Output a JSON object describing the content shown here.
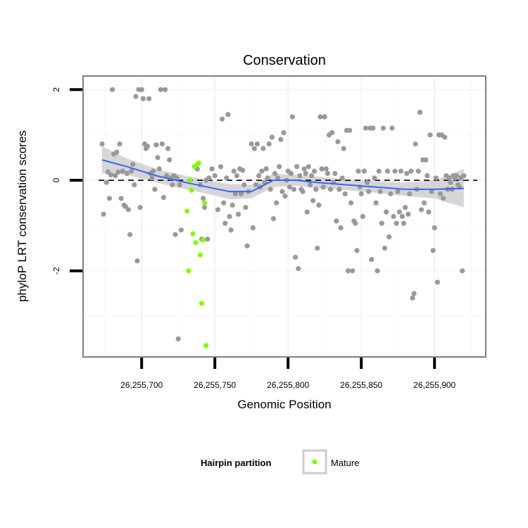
{
  "chart_data": {
    "type": "scatter",
    "title": "Conservation",
    "xlabel": "Genomic Position",
    "ylabel": "phyloP LRT conservation scores",
    "xlim": [
      26255660,
      26255935
    ],
    "ylim": [
      -3.9,
      2.3
    ],
    "x_ticks": [
      26255700,
      26255750,
      26255800,
      26255850,
      26255900
    ],
    "x_tick_labels": [
      "26,255,700",
      "26,255,750",
      "26,255,800",
      "26,255,850",
      "26,255,900"
    ],
    "y_ticks": [
      2,
      0,
      -2
    ],
    "y_tick_labels": [
      "2",
      "0",
      "-2"
    ],
    "reference_line": {
      "y": 0,
      "style": "dashed"
    },
    "grid": true,
    "legend": {
      "title": "Hairpin partition",
      "position": "bottom",
      "entries": [
        {
          "label": "Mature",
          "color": "#7fff00"
        }
      ]
    },
    "series": [
      {
        "color": "#999999",
        "points": [
          [
            26255673,
            0.8
          ],
          [
            26255674,
            -0.75
          ],
          [
            26255676,
            -0.05
          ],
          [
            26255677,
            0.18
          ],
          [
            26255678,
            -0.4
          ],
          [
            26255679,
            0.12
          ],
          [
            26255680,
            2.0
          ],
          [
            26255681,
            0.58
          ],
          [
            26255682,
            0.1
          ],
          [
            26255683,
            0.62
          ],
          [
            26255684,
            0.18
          ],
          [
            26255685,
            0.8
          ],
          [
            26255686,
            -0.4
          ],
          [
            26255687,
            0.2
          ],
          [
            26255688,
            -0.55
          ],
          [
            26255689,
            -0.58
          ],
          [
            26255690,
            0.15
          ],
          [
            26255691,
            -0.65
          ],
          [
            26255692,
            -1.2
          ],
          [
            26255693,
            0.2
          ],
          [
            26255694,
            0.35
          ],
          [
            26255695,
            -0.1
          ],
          [
            26255696,
            1.85
          ],
          [
            26255697,
            -1.78
          ],
          [
            26255698,
            2.0
          ],
          [
            26255699,
            -0.6
          ],
          [
            26255700,
            2.0
          ],
          [
            26255701,
            1.8
          ],
          [
            26255702,
            0.8
          ],
          [
            26255703,
            0.7
          ],
          [
            26255704,
            0.75
          ],
          [
            26255705,
            1.8
          ],
          [
            26255706,
            0.15
          ],
          [
            26255707,
            0.05
          ],
          [
            26255708,
            0.2
          ],
          [
            26255709,
            -0.2
          ],
          [
            26255710,
            0.78
          ],
          [
            26255711,
            0.5
          ],
          [
            26255712,
            0.25
          ],
          [
            26255713,
            2.0
          ],
          [
            26255714,
            0.8
          ],
          [
            26255715,
            -0.38
          ],
          [
            26255716,
            2.0
          ],
          [
            26255717,
            0.1
          ],
          [
            26255718,
            0.7
          ],
          [
            26255719,
            0.45
          ],
          [
            26255720,
            0.05
          ],
          [
            26255721,
            -0.1
          ],
          [
            26255722,
            0.1
          ],
          [
            26255723,
            -1.2
          ],
          [
            26255724,
            0.05
          ],
          [
            26255725,
            -3.5
          ],
          [
            26255726,
            -0.1
          ],
          [
            26255727,
            -1.1
          ],
          [
            26255738,
            0.25
          ],
          [
            26255740,
            -0.1
          ],
          [
            26255741,
            -1.3
          ],
          [
            26255742,
            -0.4
          ],
          [
            26255743,
            -0.6
          ],
          [
            26255744,
            0.0
          ],
          [
            26255745,
            -1.3
          ],
          [
            26255746,
            0.05
          ],
          [
            26255748,
            0.25
          ],
          [
            26255750,
            0.1
          ],
          [
            26255752,
            -0.65
          ],
          [
            26255754,
            0.3
          ],
          [
            26255755,
            1.35
          ],
          [
            26255756,
            -0.5
          ],
          [
            26255757,
            -0.95
          ],
          [
            26255758,
            0.05
          ],
          [
            26255759,
            1.45
          ],
          [
            26255760,
            -0.8
          ],
          [
            26255761,
            -1.1
          ],
          [
            26255762,
            -0.55
          ],
          [
            26255763,
            0.2
          ],
          [
            26255764,
            -0.3
          ],
          [
            26255765,
            0.1
          ],
          [
            26255766,
            -0.75
          ],
          [
            26255767,
            0.25
          ],
          [
            26255768,
            -0.3
          ],
          [
            26255769,
            0.22
          ],
          [
            26255770,
            -0.1
          ],
          [
            26255771,
            -0.6
          ],
          [
            26255772,
            -1.45
          ],
          [
            26255773,
            -0.25
          ],
          [
            26255775,
            0.8
          ],
          [
            26255776,
            -1.05
          ],
          [
            26255777,
            0.7
          ],
          [
            26255778,
            -0.1
          ],
          [
            26255779,
            0.8
          ],
          [
            26255780,
            0.1
          ],
          [
            26255781,
            -0.15
          ],
          [
            26255782,
            0.2
          ],
          [
            26255783,
            0.7
          ],
          [
            26255784,
            -0.05
          ],
          [
            26255785,
            0.25
          ],
          [
            26255786,
            0.05
          ],
          [
            26255787,
            0.8
          ],
          [
            26255788,
            -0.2
          ],
          [
            26255789,
            0.95
          ],
          [
            26255790,
            -0.85
          ],
          [
            26255791,
            0.15
          ],
          [
            26255792,
            -0.5
          ],
          [
            26255793,
            0.05
          ],
          [
            26255794,
            0.3
          ],
          [
            26255795,
            0.9
          ],
          [
            26255796,
            -0.25
          ],
          [
            26255797,
            1.05
          ],
          [
            26255798,
            -0.35
          ],
          [
            26255799,
            0.0
          ],
          [
            26255800,
            0.2
          ],
          [
            26255801,
            -0.15
          ],
          [
            26255802,
            0.15
          ],
          [
            26255803,
            1.4
          ],
          [
            26255804,
            -0.2
          ],
          [
            26255805,
            -1.7
          ],
          [
            26255806,
            0.3
          ],
          [
            26255807,
            -1.95
          ],
          [
            26255808,
            0.1
          ],
          [
            26255809,
            -0.2
          ],
          [
            26255810,
            -0.25
          ],
          [
            26255811,
            0.25
          ],
          [
            26255812,
            0.15
          ],
          [
            26255813,
            -0.7
          ],
          [
            26255814,
            0.3
          ],
          [
            26255815,
            -0.1
          ],
          [
            26255816,
            0.1
          ],
          [
            26255817,
            -0.45
          ],
          [
            26255818,
            0.2
          ],
          [
            26255819,
            -0.2
          ],
          [
            26255820,
            -1.5
          ],
          [
            26255821,
            -0.55
          ],
          [
            26255822,
            1.4
          ],
          [
            26255823,
            0.25
          ],
          [
            26255824,
            -0.15
          ],
          [
            26255825,
            1.4
          ],
          [
            26255826,
            0.25
          ],
          [
            26255827,
            0.15
          ],
          [
            26255828,
            1.0
          ],
          [
            26255829,
            -0.2
          ],
          [
            26255830,
            1.05
          ],
          [
            26255831,
            -0.05
          ],
          [
            26255832,
            0.15
          ],
          [
            26255833,
            -0.9
          ],
          [
            26255834,
            0.85
          ],
          [
            26255835,
            -0.2
          ],
          [
            26255836,
            -1.05
          ],
          [
            26255837,
            0.05
          ],
          [
            26255838,
            0.7
          ],
          [
            26255839,
            -0.3
          ],
          [
            26255840,
            1.1
          ],
          [
            26255841,
            -2.0
          ],
          [
            26255842,
            1.1
          ],
          [
            26255843,
            -0.5
          ],
          [
            26255844,
            -2.0
          ],
          [
            26255845,
            -0.9
          ],
          [
            26255846,
            -0.95
          ],
          [
            26255847,
            -1.55
          ],
          [
            26255848,
            0.2
          ],
          [
            26255849,
            -0.15
          ],
          [
            26255850,
            -0.3
          ],
          [
            26255851,
            -0.8
          ],
          [
            26255852,
            0.2
          ],
          [
            26255853,
            1.15
          ],
          [
            26255854,
            -0.05
          ],
          [
            26255855,
            -0.25
          ],
          [
            26255856,
            1.15
          ],
          [
            26255857,
            -1.75
          ],
          [
            26255858,
            1.15
          ],
          [
            26255859,
            0.05
          ],
          [
            26255860,
            -0.5
          ],
          [
            26255861,
            -2.0
          ],
          [
            26255862,
            0.2
          ],
          [
            26255863,
            -0.25
          ],
          [
            26255864,
            -0.95
          ],
          [
            26255865,
            1.15
          ],
          [
            26255866,
            -1.5
          ],
          [
            26255867,
            -0.7
          ],
          [
            26255868,
            0.2
          ],
          [
            26255869,
            -1.25
          ],
          [
            26255870,
            -0.3
          ],
          [
            26255871,
            1.15
          ],
          [
            26255872,
            -0.8
          ],
          [
            26255873,
            0.2
          ],
          [
            26255874,
            -0.95
          ],
          [
            26255875,
            -0.25
          ],
          [
            26255876,
            -0.7
          ],
          [
            26255877,
            0.2
          ],
          [
            26255878,
            -0.8
          ],
          [
            26255879,
            -0.95
          ],
          [
            26255880,
            -0.6
          ],
          [
            26255881,
            0.15
          ],
          [
            26255882,
            -0.75
          ],
          [
            26255883,
            -0.3
          ],
          [
            26255884,
            0.2
          ],
          [
            26255885,
            -2.6
          ],
          [
            26255886,
            -2.5
          ],
          [
            26255887,
            0.8
          ],
          [
            26255888,
            -0.2
          ],
          [
            26255889,
            0.2
          ],
          [
            26255890,
            1.5
          ],
          [
            26255891,
            -0.65
          ],
          [
            26255892,
            0.45
          ],
          [
            26255893,
            -0.5
          ],
          [
            26255894,
            0.45
          ],
          [
            26255895,
            0.1
          ],
          [
            26255896,
            -0.7
          ],
          [
            26255897,
            1.0
          ],
          [
            26255898,
            -0.25
          ],
          [
            26255899,
            -1.55
          ],
          [
            26255900,
            -1.05
          ],
          [
            26255901,
            0.05
          ],
          [
            26255902,
            -2.25
          ],
          [
            26255903,
            1.0
          ],
          [
            26255904,
            -0.3
          ],
          [
            26255905,
            1.0
          ],
          [
            26255906,
            -0.4
          ],
          [
            26255907,
            0.95
          ],
          [
            26255908,
            0.1
          ],
          [
            26255909,
            -0.2
          ],
          [
            26255910,
            0.05
          ],
          [
            26255911,
            -0.05
          ],
          [
            26255912,
            -0.2
          ],
          [
            26255913,
            0.1
          ],
          [
            26255914,
            0.05
          ],
          [
            26255915,
            0.1
          ],
          [
            26255916,
            -0.1
          ],
          [
            26255917,
            -0.15
          ],
          [
            26255918,
            0.05
          ],
          [
            26255919,
            -2.0
          ],
          [
            26255920,
            0.1
          ]
        ]
      },
      {
        "name": "Mature",
        "color": "#7fff00",
        "points": [
          [
            26255731,
            -0.68
          ],
          [
            26255732,
            -2.0
          ],
          [
            26255733,
            0.0
          ],
          [
            26255734,
            -0.22
          ],
          [
            26255735,
            -1.18
          ],
          [
            26255736,
            0.3
          ],
          [
            26255737,
            -1.38
          ],
          [
            26255738,
            0.35
          ],
          [
            26255739,
            0.38
          ],
          [
            26255740,
            -1.65
          ],
          [
            26255741,
            -2.72
          ],
          [
            26255742,
            -1.32
          ],
          [
            26255743,
            -0.5
          ],
          [
            26255744,
            -3.65
          ]
        ]
      }
    ],
    "smooth": {
      "color": "#3366ff",
      "band_color": "#cccccc",
      "x": [
        26255673,
        26255690,
        26255710,
        26255730,
        26255745,
        26255760,
        26255775,
        26255790,
        26255805,
        26255820,
        26255840,
        26255860,
        26255880,
        26255900,
        26255920
      ],
      "y": [
        0.45,
        0.3,
        0.1,
        -0.05,
        -0.15,
        -0.25,
        -0.25,
        0.0,
        0.0,
        -0.05,
        -0.1,
        -0.15,
        -0.2,
        -0.2,
        -0.18
      ],
      "lower": [
        0.15,
        0.12,
        -0.05,
        -0.2,
        -0.3,
        -0.42,
        -0.4,
        -0.15,
        -0.12,
        -0.18,
        -0.22,
        -0.28,
        -0.35,
        -0.4,
        -0.6
      ],
      "upper": [
        0.75,
        0.48,
        0.25,
        0.1,
        0.0,
        -0.08,
        -0.1,
        0.15,
        0.12,
        0.08,
        0.02,
        -0.02,
        -0.05,
        0.0,
        0.25
      ]
    }
  }
}
